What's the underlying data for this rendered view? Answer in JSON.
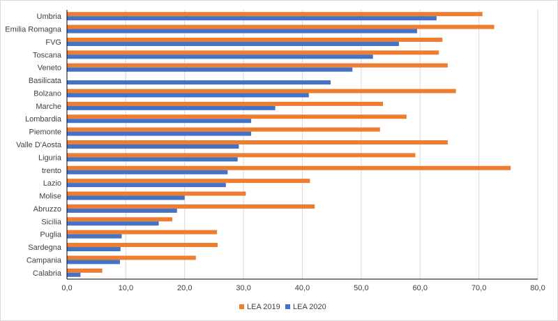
{
  "chart_data": {
    "type": "bar",
    "orientation": "horizontal",
    "title": "",
    "xlabel": "",
    "ylabel": "",
    "xlim": [
      0,
      80
    ],
    "x_ticks": [
      "0,0",
      "10,0",
      "20,0",
      "30,0",
      "40,0",
      "50,0",
      "60,0",
      "70,0",
      "80,0"
    ],
    "grid": true,
    "legend_position": "bottom",
    "categories": [
      "Umbria",
      "Emilia Romagna",
      "FVG",
      "Toscana",
      "Veneto",
      "Basilicata",
      "Bolzano",
      "Marche",
      "Lombardia",
      "Piemonte",
      "Valle D'Aosta",
      "Liguria",
      "trento",
      "Lazio",
      "Molise",
      "Abruzzo",
      "Sicilia",
      "Puglia",
      "Sardegna",
      "Campania",
      "Calabria"
    ],
    "series": [
      {
        "name": "LEA 2019",
        "color": "#ed7d31",
        "values": [
          70.6,
          72.6,
          63.8,
          63.2,
          64.7,
          null,
          66.1,
          53.7,
          57.7,
          53.2,
          64.7,
          59.2,
          75.4,
          41.3,
          30.4,
          42.1,
          17.9,
          25.5,
          25.6,
          21.9,
          6.0
        ]
      },
      {
        "name": "LEA 2020",
        "color": "#4472c4",
        "values": [
          62.8,
          59.5,
          56.4,
          52.0,
          48.5,
          44.8,
          41.1,
          35.4,
          31.3,
          31.3,
          29.2,
          29.0,
          27.3,
          27.0,
          20.0,
          18.7,
          15.6,
          9.3,
          9.1,
          9.0,
          2.3
        ]
      }
    ]
  }
}
